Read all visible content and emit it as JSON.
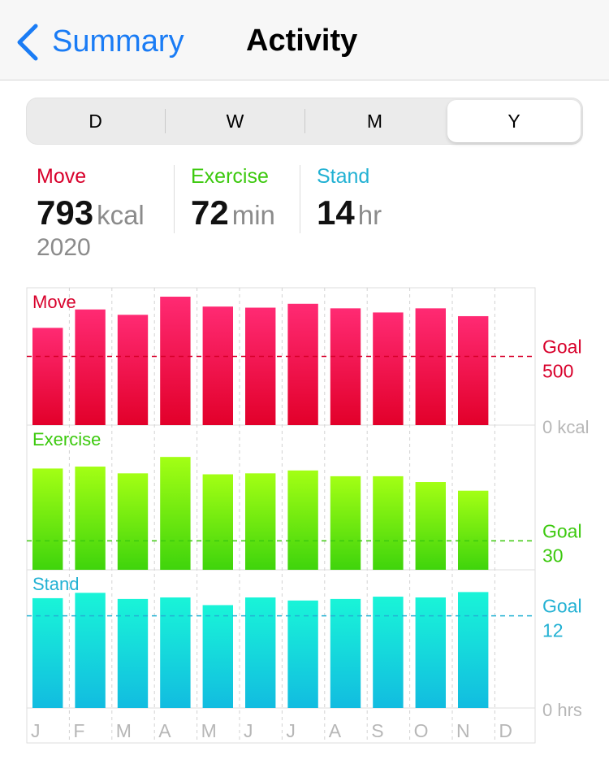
{
  "nav": {
    "back_label": "Summary",
    "title": "Activity"
  },
  "segments": [
    {
      "label": "D",
      "selected": false
    },
    {
      "label": "W",
      "selected": false
    },
    {
      "label": "M",
      "selected": false
    },
    {
      "label": "Y",
      "selected": true
    }
  ],
  "stats": {
    "move": {
      "label": "Move",
      "value": "793",
      "unit": "kcal",
      "color": "#d8002b"
    },
    "exercise": {
      "label": "Exercise",
      "value": "72",
      "unit": "min",
      "color": "#3cc90e"
    },
    "stand": {
      "label": "Stand",
      "value": "14",
      "unit": "hr",
      "color": "#22b1d3"
    }
  },
  "year": "2020",
  "chart_data": {
    "type": "bar",
    "categories": [
      "J",
      "F",
      "M",
      "A",
      "M",
      "J",
      "J",
      "A",
      "S",
      "O",
      "N",
      "D"
    ],
    "series": [
      {
        "name": "Move",
        "values": [
          708,
          842,
          803,
          935,
          863,
          855,
          883,
          850,
          820,
          850,
          793,
          null
        ],
        "ylim": [
          0,
          1000
        ],
        "goal_label": "Goal",
        "goal_value_label": "500",
        "goal": 500,
        "zero_label": "0 kcal",
        "color_top": "#ff2a73",
        "color_bottom": "#e2002a",
        "text_color": "#d8002b"
      },
      {
        "name": "Exercise",
        "values": [
          105,
          107,
          100,
          117,
          99,
          100,
          103,
          97,
          97,
          91,
          82,
          null
        ],
        "ylim": [
          0,
          150
        ],
        "goal_label": "Goal",
        "goal_value_label": "30",
        "goal": 30,
        "zero_label": "",
        "color_top": "#a3ff14",
        "color_bottom": "#3fd40c",
        "text_color": "#3cc90e"
      },
      {
        "name": "Stand",
        "values": [
          14.3,
          15.0,
          14.2,
          14.4,
          13.4,
          14.4,
          14.0,
          14.2,
          14.5,
          14.4,
          15.1,
          null
        ],
        "ylim": [
          0,
          18
        ],
        "goal_label": "Goal",
        "goal_value_label": "12",
        "goal": 12,
        "zero_label": "0 hrs",
        "color_top": "#19f4d8",
        "color_bottom": "#12bce0",
        "text_color": "#22b1d3"
      }
    ]
  }
}
